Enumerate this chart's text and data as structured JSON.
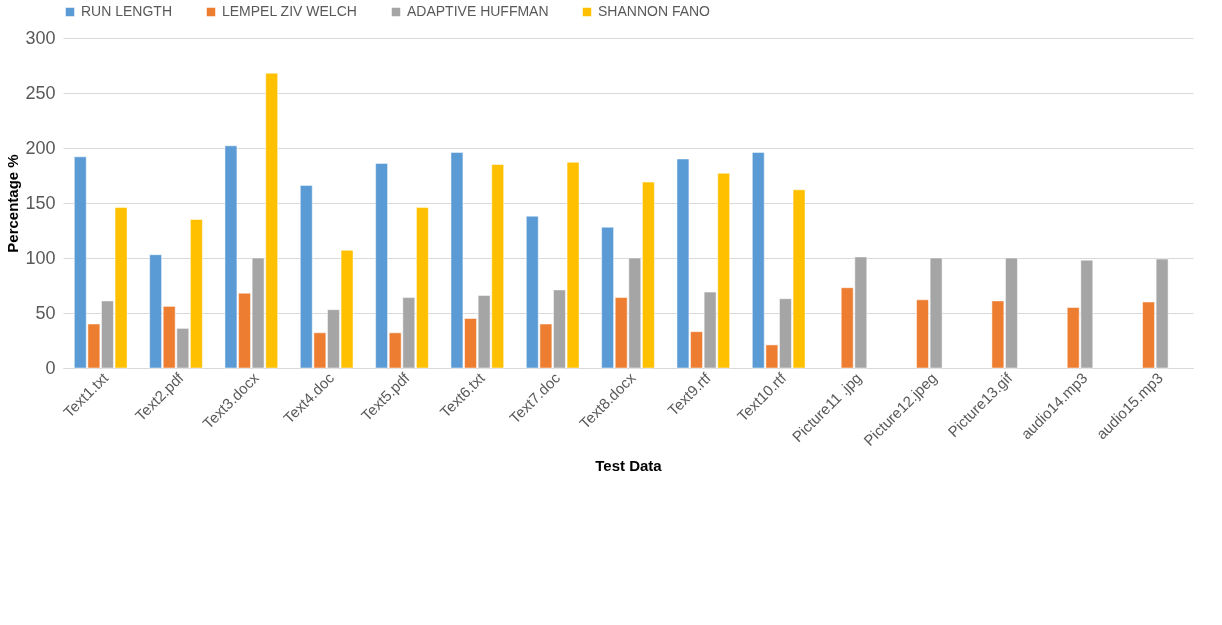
{
  "chart_data": {
    "type": "bar",
    "xlabel": "Test Data",
    "ylabel": "Percentage %",
    "categories": [
      "Text1.txt",
      "Text2.pdf",
      "Text3.docx",
      "Text4.doc",
      "Text5.pdf",
      "Text6.txt",
      "Text7.doc",
      "Text8.docx",
      "Text9.rtf",
      "Text10.rtf",
      "Picture11 .jpg",
      "Picture12.jpeg",
      "Picture13.gif",
      "audio14.mp3",
      "audio15.mp3"
    ],
    "series": [
      {
        "name": "RUN LENGTH",
        "color": "#5b9bd5",
        "values": [
          192,
          103,
          202,
          166,
          186,
          196,
          138,
          128,
          190,
          196,
          null,
          null,
          null,
          null,
          null
        ]
      },
      {
        "name": "LEMPEL ZIV WELCH",
        "color": "#ed7d31",
        "values": [
          40,
          56,
          68,
          32,
          32,
          45,
          40,
          64,
          33,
          21,
          73,
          62,
          61,
          55,
          60
        ]
      },
      {
        "name": "ADAPTIVE HUFFMAN",
        "color": "#a5a5a5",
        "values": [
          61,
          36,
          100,
          53,
          64,
          66,
          71,
          100,
          69,
          63,
          101,
          100,
          100,
          98,
          99
        ]
      },
      {
        "name": "SHANNON FANO",
        "color": "#ffc000",
        "values": [
          146,
          135,
          268,
          107,
          146,
          185,
          187,
          169,
          177,
          162,
          null,
          null,
          null,
          null,
          null
        ]
      }
    ],
    "ylim": [
      0,
      300
    ],
    "yticks": [
      0,
      50,
      100,
      150,
      200,
      250,
      300
    ],
    "grid": "y",
    "legend": "top"
  }
}
